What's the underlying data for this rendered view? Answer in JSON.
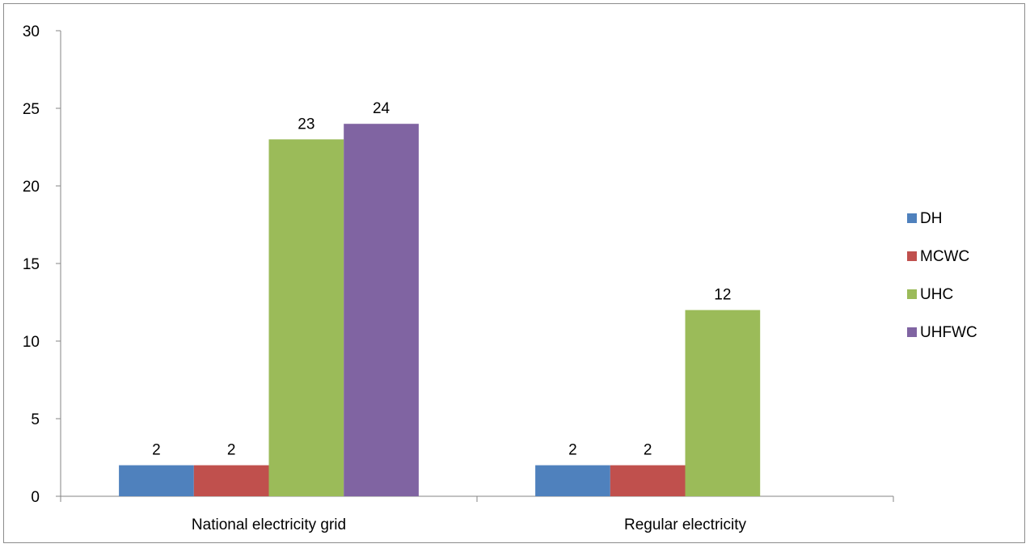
{
  "chart_data": {
    "type": "bar",
    "categories": [
      "National electricity grid",
      "Regular electricity"
    ],
    "series": [
      {
        "name": "DH",
        "values": [
          2,
          2
        ],
        "color": "#4F81BD"
      },
      {
        "name": "MCWC",
        "values": [
          2,
          2
        ],
        "color": "#C0504D"
      },
      {
        "name": "UHC",
        "values": [
          23,
          12
        ],
        "color": "#9BBB59"
      },
      {
        "name": "UHFWC",
        "values": [
          24,
          null
        ],
        "color": "#8064A2"
      }
    ],
    "title": "",
    "xlabel": "",
    "ylabel": "",
    "ylim": [
      0,
      30
    ],
    "yticks": [
      0,
      5,
      10,
      15,
      20,
      25,
      30
    ],
    "grid": false,
    "legend": "right"
  }
}
